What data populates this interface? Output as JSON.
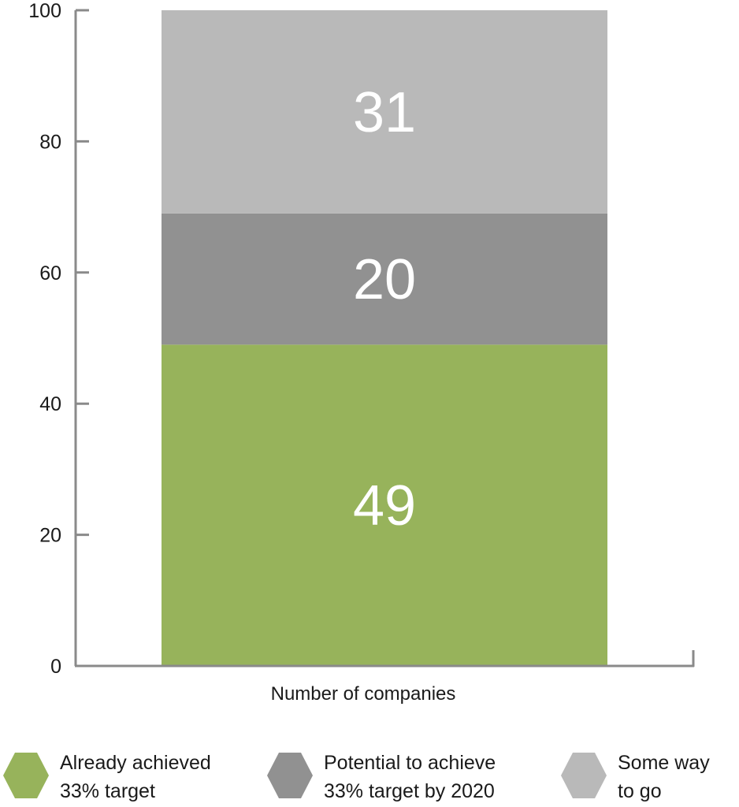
{
  "chart_data": {
    "type": "bar",
    "stacked": true,
    "categories": [
      "Number of companies"
    ],
    "series": [
      {
        "name": "Already achieved 33% target",
        "values": [
          49
        ],
        "color": "#97b35b"
      },
      {
        "name": "Potential to achieve 33% target by 2020",
        "values": [
          20
        ],
        "color": "#919191"
      },
      {
        "name": "Some way to go",
        "values": [
          31
        ],
        "color": "#b9b9b9"
      }
    ],
    "data_labels": [
      "49",
      "20",
      "31"
    ],
    "xlabel": "Number of companies",
    "ylabel": "",
    "ylim": [
      0,
      100
    ],
    "yticks": [
      "0",
      "20",
      "40",
      "60",
      "80",
      "100"
    ],
    "grid": false,
    "legend_position": "bottom"
  },
  "legend": [
    {
      "line1": "Already achieved",
      "line2": "33% target",
      "color": "#97b35b",
      "icon": "hexagon-icon"
    },
    {
      "line1": "Potential to achieve",
      "line2": "33% target by 2020",
      "color": "#919191",
      "icon": "hexagon-icon"
    },
    {
      "line1": "Some way",
      "line2": "to go",
      "color": "#b9b9b9",
      "icon": "hexagon-icon"
    }
  ]
}
